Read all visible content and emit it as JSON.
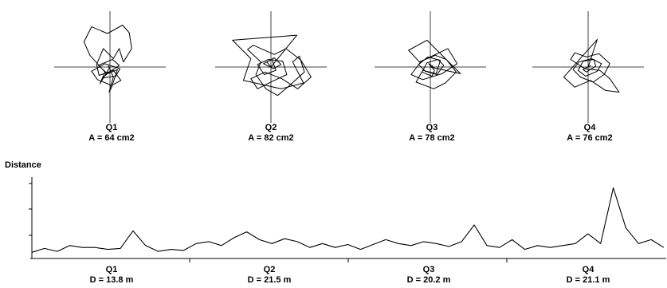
{
  "chart_data": {
    "type": "line",
    "quadrants": [
      {
        "name": "Q1",
        "area_label": "A = 64 cm2",
        "distance_label": "D = 13.8 m"
      },
      {
        "name": "Q2",
        "area_label": "A = 82 cm2",
        "distance_label": "D = 21.5 m"
      },
      {
        "name": "Q3",
        "area_label": "A = 78 cm2",
        "distance_label": "D = 20.2 m"
      },
      {
        "name": "Q4",
        "area_label": "A = 76 cm2",
        "distance_label": "D = 21.1 m"
      }
    ],
    "distance_plot": {
      "ylabel": "Distance",
      "grid": false,
      "ylim": [
        0,
        4
      ],
      "xlim": [
        0,
        100
      ],
      "x": [
        0,
        2,
        4,
        6,
        8,
        10,
        12,
        14,
        16,
        18,
        20,
        22,
        24,
        26,
        28,
        30,
        32,
        34,
        36,
        38,
        40,
        42,
        44,
        46,
        48,
        50,
        52,
        54,
        56,
        58,
        60,
        62,
        64,
        66,
        68,
        70,
        72,
        74,
        76,
        78,
        80,
        82,
        84,
        86,
        88,
        90,
        92,
        94,
        96,
        98,
        100
      ],
      "y": [
        0.15,
        0.35,
        0.2,
        0.5,
        0.4,
        0.4,
        0.3,
        0.35,
        1.25,
        0.5,
        0.2,
        0.3,
        0.25,
        0.6,
        0.7,
        0.5,
        0.9,
        1.2,
        0.8,
        0.6,
        0.85,
        0.7,
        0.4,
        0.6,
        0.4,
        0.55,
        0.3,
        0.55,
        0.8,
        0.6,
        0.5,
        0.7,
        0.6,
        0.45,
        0.7,
        1.55,
        0.5,
        0.4,
        0.8,
        0.3,
        0.5,
        0.4,
        0.5,
        0.6,
        1.1,
        0.6,
        3.45,
        1.4,
        0.6,
        0.8,
        0.4
      ]
    },
    "trajectories": [
      {
        "name": "Q1",
        "x": [
          0,
          -1.2,
          -0.6,
          -2.4,
          -3.1,
          -2.2,
          -0.3,
          1.5,
          2.3,
          2.6,
          1.6,
          1.1,
          0.4,
          -0.8,
          -1.6,
          -1.3,
          0.4,
          1.3,
          0.2,
          -1.5,
          -2.2,
          -0.6,
          1.2,
          0.7,
          -0.9,
          -0.2,
          1.1,
          0.3,
          -1.4,
          -0.3,
          0.9,
          0.2,
          -0.1,
          0.4,
          -0.2
        ],
        "y": [
          0,
          -2.0,
          -0.6,
          1.4,
          3.0,
          4.8,
          4.0,
          5.0,
          4.1,
          2.2,
          0.6,
          2.2,
          1.0,
          2.2,
          0.3,
          -1.0,
          -0.4,
          -1.6,
          -2.2,
          -1.5,
          -0.5,
          0.4,
          -0.2,
          -1.1,
          -1.3,
          -0.7,
          0.2,
          0.9,
          0.2,
          -0.8,
          -0.3,
          -2.4,
          -3.0,
          -1.2,
          0.2
        ]
      },
      {
        "name": "Q2",
        "x": [
          0,
          3.1,
          -4.6,
          -2.4,
          -3.3,
          1.2,
          3.9,
          2.6,
          3.4,
          4.0,
          2.1,
          0.8,
          -0.6,
          -1.8,
          -1.2,
          -2.8,
          -2.1,
          0.4,
          1.8,
          3.6,
          4.8,
          3.2,
          1.3,
          -0.7,
          -2.4,
          -1.6,
          0.2,
          1.9,
          1.4,
          -0.3,
          -1.6,
          -0.8,
          0.6,
          0.1,
          -0.9,
          0.3,
          1.2,
          0.4,
          -0.5,
          0
        ],
        "y": [
          0,
          3.8,
          3.2,
          1.0,
          -1.6,
          -2.6,
          -1.9,
          0.6,
          1.3,
          -0.6,
          -2.3,
          -3.4,
          -2.6,
          -0.9,
          0.6,
          2.1,
          2.6,
          1.5,
          2.2,
          0.8,
          -1.2,
          -2.6,
          -1.4,
          -0.6,
          -1.4,
          -2.6,
          -1.7,
          -0.9,
          0.7,
          0.9,
          0.3,
          -0.9,
          -0.4,
          0.9,
          0.4,
          -0.2,
          0.3,
          1.1,
          0.6,
          0
        ]
      },
      {
        "name": "Q3",
        "x": [
          0,
          3.6,
          -0.4,
          -2.6,
          -1.3,
          2.1,
          3.2,
          1.4,
          -0.9,
          -2.3,
          -1.1,
          0.6,
          1.9,
          3.1,
          1.8,
          0.4,
          -1.7,
          -0.9,
          0.7,
          1.2,
          -0.3,
          -1.4,
          -0.6,
          0.8,
          1.6,
          0.9,
          -0.4,
          -1.0,
          0.2,
          0.5,
          -0.2,
          0.3,
          0
        ],
        "y": [
          0,
          -0.8,
          3.2,
          2.0,
          0.6,
          2.2,
          0.4,
          -0.8,
          -1.5,
          -0.9,
          0.7,
          1.4,
          0.9,
          -0.6,
          -1.9,
          -2.6,
          -1.8,
          -0.4,
          -0.8,
          0.8,
          1.2,
          0.3,
          -0.5,
          -0.9,
          0.2,
          0.9,
          0.5,
          -0.6,
          -1.1,
          -0.4,
          0.4,
          0.1,
          0
        ]
      },
      {
        "name": "Q4",
        "x": [
          0,
          1.1,
          -2.9,
          -1.6,
          0.3,
          2.1,
          3.7,
          2.6,
          1.4,
          -0.4,
          -2.1,
          -1.6,
          -0.2,
          1.3,
          2.6,
          1.9,
          0.6,
          -0.9,
          -1.8,
          -1.1,
          0.4,
          1.6,
          1.1,
          -0.3,
          -1.2,
          -0.6,
          0.7,
          0.9,
          -0.2,
          -0.6,
          0.3,
          0
        ],
        "y": [
          0,
          3.3,
          -1.2,
          -2.4,
          -1.6,
          -2.8,
          -3.0,
          -1.4,
          -0.4,
          -0.2,
          0.9,
          1.7,
          1.2,
          1.6,
          0.4,
          -0.9,
          -1.8,
          -1.2,
          -0.3,
          0.6,
          1.0,
          0.4,
          -0.5,
          -1.1,
          -0.4,
          0.7,
          0.9,
          0.1,
          -0.6,
          -0.3,
          0.2,
          0
        ]
      }
    ]
  }
}
